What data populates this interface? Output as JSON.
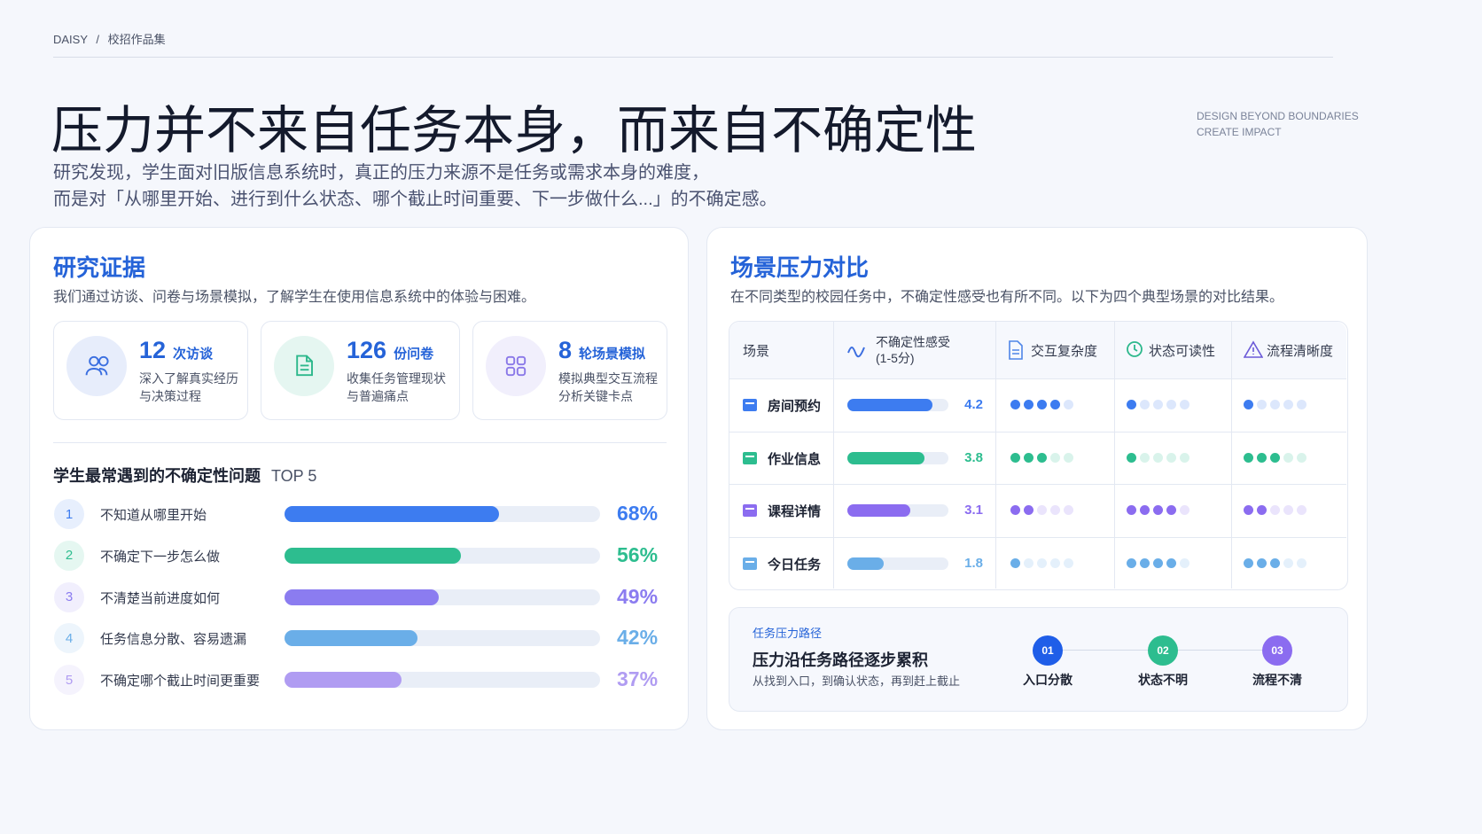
{
  "header": {
    "breadcrumb": [
      "DAISY",
      "校招作品集"
    ],
    "separator": "/",
    "tagline": [
      "DESIGN BEYOND BOUNDARIES",
      "CREATE IMPACT"
    ],
    "title": "压力并不来自任务本身，而来自不确定性",
    "subtitle": [
      "研究发现，学生面对旧版信息系统时，真正的压力来源不是任务或需求本身的难度，",
      "而是对「从哪里开始、进行到什么状态、哪个截止时间重要、下一步做什么...」的不确定感。"
    ]
  },
  "evidence": {
    "title": "研究证据",
    "description": "我们通过访谈、问卷与场景模拟，了解学生在使用信息系统中的体验与困难。",
    "stats": [
      {
        "value": "12",
        "unit": "次访谈",
        "lines": [
          "深入了解真实经历",
          "与决策过程"
        ],
        "color": "#3b6fe0"
      },
      {
        "value": "126",
        "unit": "份问卷",
        "lines": [
          "收集任务管理现状",
          "与普遍痛点"
        ],
        "color": "#2db88c"
      },
      {
        "value": "8",
        "unit": "轮场景模拟",
        "lines": [
          "模拟典型交互流程",
          "分析关键卡点"
        ],
        "color": "#8a78e8"
      }
    ],
    "top5": {
      "title": "学生最常遇到的不确定性问题",
      "tag": "TOP 5",
      "xlim": [
        0,
        100
      ],
      "items": [
        {
          "rank": "1",
          "label": "不知道从哪里开始",
          "value": 68,
          "value_label": "68%",
          "color": "#3d7cf0"
        },
        {
          "rank": "2",
          "label": "不确定下一步怎么做",
          "value": 56,
          "value_label": "56%",
          "color": "#2dbd8f"
        },
        {
          "rank": "3",
          "label": "不清楚当前进度如何",
          "value": 49,
          "value_label": "49%",
          "color": "#8b7cf0"
        },
        {
          "rank": "4",
          "label": "任务信息分散、容易遗漏",
          "value": 42,
          "value_label": "42%",
          "color": "#6aaee8"
        },
        {
          "rank": "5",
          "label": "不确定哪个截止时间更重要",
          "value": 37,
          "value_label": "37%",
          "color": "#b09cf2"
        }
      ]
    }
  },
  "comparison": {
    "title": "场景压力对比",
    "description": "在不同类型的校园任务中，不确定性感受也有所不同。以下为四个典型场景的对比结果。",
    "headers": {
      "scene": "场景",
      "uncertainty": [
        "不确定性感受",
        "(1-5分)"
      ],
      "complexity": "交互复杂度",
      "readability": "状态可读性",
      "clarity": "流程清晰度"
    },
    "uncertainty_lim": [
      0,
      5
    ],
    "dot_count": 5,
    "rows": [
      {
        "name": "房间预约",
        "uncertainty": 4.2,
        "complexity": 4,
        "readability": 1,
        "clarity": 1,
        "color": "#3d7cf0"
      },
      {
        "name": "作业信息",
        "uncertainty": 3.8,
        "complexity": 3,
        "readability": 1,
        "clarity": 3,
        "color": "#2dbd8f"
      },
      {
        "name": "课程详情",
        "uncertainty": 3.1,
        "complexity": 2,
        "readability": 4,
        "clarity": 2,
        "color": "#8b6cf0"
      },
      {
        "name": "今日任务",
        "uncertainty": 1.8,
        "complexity": 1,
        "readability": 4,
        "clarity": 3,
        "color": "#6aaee8"
      }
    ]
  },
  "path": {
    "label": "任务压力路径",
    "title": "压力沿任务路径逐步累积",
    "description": "从找到入口，到确认状态，再到赶上截止",
    "steps": [
      {
        "number": "01",
        "label": "入口分散",
        "color": "#1f5ee8"
      },
      {
        "number": "02",
        "label": "状态不明",
        "color": "#2dbd8f"
      },
      {
        "number": "03",
        "label": "流程不清",
        "color": "#8b6cf0"
      }
    ]
  }
}
